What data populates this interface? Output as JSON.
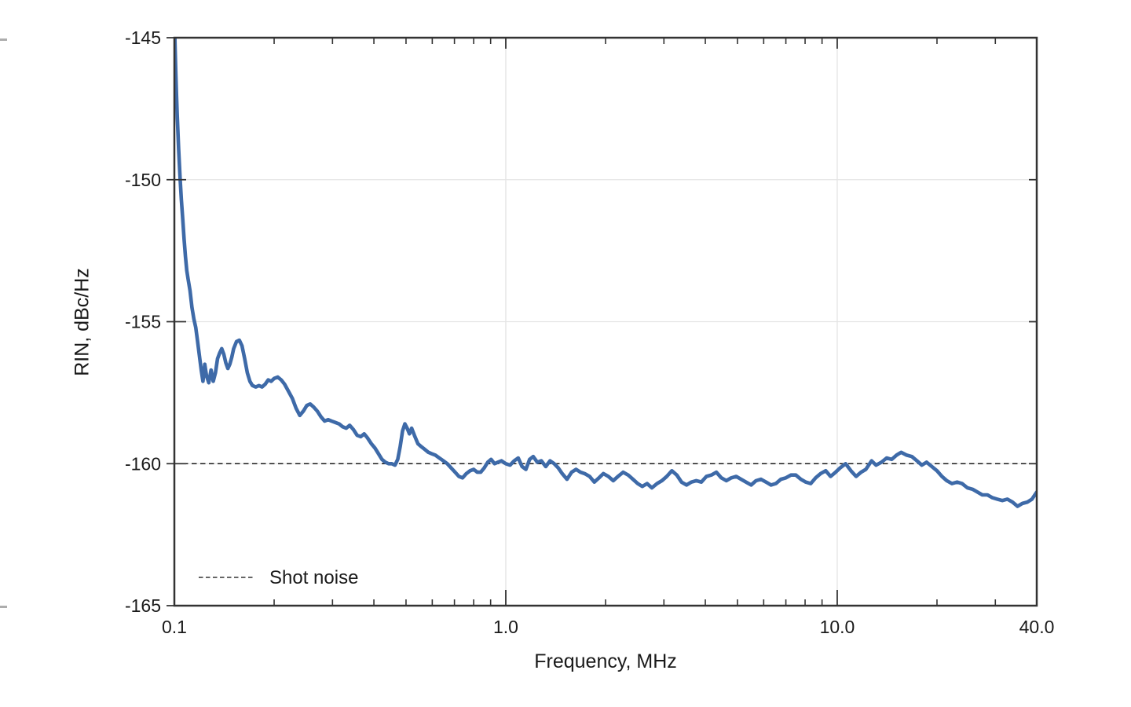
{
  "page": {
    "background": "#ffffff"
  },
  "chart_data": {
    "type": "line",
    "title": "",
    "xlabel": "Frequency, MHz",
    "ylabel": "RIN, dBc/Hz",
    "x_scale": "log",
    "xlim": [
      0.1,
      40
    ],
    "ylim": [
      -165,
      -145
    ],
    "grid": true,
    "grid_x_values": [
      1,
      10
    ],
    "grid_y_values": [
      -150,
      -155,
      -160
    ],
    "x_ticks": [
      {
        "value": 0.1,
        "label": "0.1"
      },
      {
        "value": 1.0,
        "label": "1.0"
      },
      {
        "value": 10.0,
        "label": "10.0"
      },
      {
        "value": 40.0,
        "label": "40.0"
      }
    ],
    "x_minor_ticks": [
      0.2,
      0.3,
      0.4,
      0.5,
      0.6,
      0.7,
      0.8,
      0.9,
      2,
      3,
      4,
      5,
      6,
      7,
      8,
      9,
      20,
      30
    ],
    "y_ticks": [
      {
        "value": -145,
        "label": "-145"
      },
      {
        "value": -150,
        "label": "-150"
      },
      {
        "value": -155,
        "label": "-155"
      },
      {
        "value": -160,
        "label": "-160"
      },
      {
        "value": -165,
        "label": "-165"
      }
    ],
    "colors": {
      "curve": "#3E6AA8",
      "shot_noise_line": "#1a1a1a",
      "frame": "#333333",
      "grid": "#e4e4e4"
    },
    "legend": {
      "position": "lower-left",
      "entries": [
        {
          "label": "Shot noise",
          "style": "dashed",
          "color": "#333333"
        }
      ]
    },
    "shot_noise": {
      "y": -160,
      "style": "dashed"
    },
    "series": [
      {
        "name": "RIN",
        "color": "#3E6AA8",
        "points": [
          [
            0.1,
            -144.3
          ],
          [
            0.1005,
            -145.3
          ],
          [
            0.101,
            -146.2
          ],
          [
            0.1015,
            -147.0
          ],
          [
            0.102,
            -147.7
          ],
          [
            0.103,
            -148.9
          ],
          [
            0.104,
            -149.9
          ],
          [
            0.105,
            -150.7
          ],
          [
            0.106,
            -151.4
          ],
          [
            0.107,
            -152.1
          ],
          [
            0.108,
            -152.7
          ],
          [
            0.109,
            -153.2
          ],
          [
            0.11,
            -153.5
          ],
          [
            0.1115,
            -153.9
          ],
          [
            0.113,
            -154.5
          ],
          [
            0.1145,
            -154.9
          ],
          [
            0.116,
            -155.2
          ],
          [
            0.1175,
            -155.7
          ],
          [
            0.119,
            -156.2
          ],
          [
            0.1205,
            -156.7
          ],
          [
            0.122,
            -157.1
          ],
          [
            0.1235,
            -156.5
          ],
          [
            0.125,
            -156.9
          ],
          [
            0.127,
            -157.15
          ],
          [
            0.129,
            -156.7
          ],
          [
            0.131,
            -157.1
          ],
          [
            0.133,
            -156.8
          ],
          [
            0.135,
            -156.3
          ],
          [
            0.137,
            -156.1
          ],
          [
            0.139,
            -155.95
          ],
          [
            0.141,
            -156.15
          ],
          [
            0.143,
            -156.45
          ],
          [
            0.145,
            -156.65
          ],
          [
            0.147,
            -156.5
          ],
          [
            0.149,
            -156.25
          ],
          [
            0.151,
            -155.95
          ],
          [
            0.154,
            -155.7
          ],
          [
            0.157,
            -155.65
          ],
          [
            0.16,
            -155.85
          ],
          [
            0.163,
            -156.3
          ],
          [
            0.166,
            -156.8
          ],
          [
            0.169,
            -157.1
          ],
          [
            0.172,
            -157.25
          ],
          [
            0.176,
            -157.3
          ],
          [
            0.18,
            -157.25
          ],
          [
            0.184,
            -157.3
          ],
          [
            0.188,
            -157.2
          ],
          [
            0.192,
            -157.05
          ],
          [
            0.196,
            -157.1
          ],
          [
            0.2,
            -157.0
          ],
          [
            0.205,
            -156.95
          ],
          [
            0.21,
            -157.05
          ],
          [
            0.215,
            -157.2
          ],
          [
            0.221,
            -157.45
          ],
          [
            0.227,
            -157.7
          ],
          [
            0.233,
            -158.05
          ],
          [
            0.239,
            -158.3
          ],
          [
            0.245,
            -158.15
          ],
          [
            0.251,
            -157.95
          ],
          [
            0.257,
            -157.9
          ],
          [
            0.263,
            -158.0
          ],
          [
            0.27,
            -158.15
          ],
          [
            0.277,
            -158.35
          ],
          [
            0.284,
            -158.5
          ],
          [
            0.291,
            -158.45
          ],
          [
            0.298,
            -158.5
          ],
          [
            0.306,
            -158.55
          ],
          [
            0.314,
            -158.6
          ],
          [
            0.322,
            -158.7
          ],
          [
            0.33,
            -158.75
          ],
          [
            0.338,
            -158.65
          ],
          [
            0.347,
            -158.8
          ],
          [
            0.356,
            -159.0
          ],
          [
            0.365,
            -159.05
          ],
          [
            0.374,
            -158.95
          ],
          [
            0.383,
            -159.1
          ],
          [
            0.393,
            -159.3
          ],
          [
            0.403,
            -159.45
          ],
          [
            0.413,
            -159.65
          ],
          [
            0.423,
            -159.85
          ],
          [
            0.433,
            -159.95
          ],
          [
            0.443,
            -160.0
          ],
          [
            0.453,
            -160.0
          ],
          [
            0.463,
            -160.05
          ],
          [
            0.472,
            -159.85
          ],
          [
            0.48,
            -159.4
          ],
          [
            0.488,
            -158.85
          ],
          [
            0.496,
            -158.6
          ],
          [
            0.504,
            -158.75
          ],
          [
            0.512,
            -158.95
          ],
          [
            0.52,
            -158.75
          ],
          [
            0.53,
            -159.0
          ],
          [
            0.543,
            -159.3
          ],
          [
            0.556,
            -159.4
          ],
          [
            0.57,
            -159.5
          ],
          [
            0.584,
            -159.6
          ],
          [
            0.598,
            -159.65
          ],
          [
            0.613,
            -159.7
          ],
          [
            0.63,
            -159.8
          ],
          [
            0.648,
            -159.9
          ],
          [
            0.666,
            -160.0
          ],
          [
            0.684,
            -160.15
          ],
          [
            0.703,
            -160.3
          ],
          [
            0.722,
            -160.45
          ],
          [
            0.741,
            -160.5
          ],
          [
            0.76,
            -160.35
          ],
          [
            0.78,
            -160.25
          ],
          [
            0.8,
            -160.2
          ],
          [
            0.82,
            -160.3
          ],
          [
            0.84,
            -160.3
          ],
          [
            0.861,
            -160.15
          ],
          [
            0.882,
            -159.95
          ],
          [
            0.903,
            -159.85
          ],
          [
            0.925,
            -160.0
          ],
          [
            0.947,
            -159.95
          ],
          [
            0.97,
            -159.9
          ],
          [
            1.0,
            -160.0
          ],
          [
            1.03,
            -160.05
          ],
          [
            1.06,
            -159.9
          ],
          [
            1.09,
            -159.8
          ],
          [
            1.12,
            -160.1
          ],
          [
            1.15,
            -160.2
          ],
          [
            1.18,
            -159.85
          ],
          [
            1.21,
            -159.75
          ],
          [
            1.245,
            -159.95
          ],
          [
            1.28,
            -159.9
          ],
          [
            1.32,
            -160.1
          ],
          [
            1.36,
            -159.9
          ],
          [
            1.4,
            -160.0
          ],
          [
            1.44,
            -160.15
          ],
          [
            1.48,
            -160.35
          ],
          [
            1.53,
            -160.55
          ],
          [
            1.58,
            -160.3
          ],
          [
            1.63,
            -160.2
          ],
          [
            1.68,
            -160.3
          ],
          [
            1.73,
            -160.35
          ],
          [
            1.79,
            -160.45
          ],
          [
            1.85,
            -160.65
          ],
          [
            1.91,
            -160.5
          ],
          [
            1.97,
            -160.35
          ],
          [
            2.04,
            -160.45
          ],
          [
            2.11,
            -160.6
          ],
          [
            2.18,
            -160.45
          ],
          [
            2.26,
            -160.3
          ],
          [
            2.34,
            -160.4
          ],
          [
            2.42,
            -160.55
          ],
          [
            2.5,
            -160.7
          ],
          [
            2.58,
            -160.8
          ],
          [
            2.67,
            -160.7
          ],
          [
            2.76,
            -160.85
          ],
          [
            2.86,
            -160.7
          ],
          [
            2.96,
            -160.6
          ],
          [
            3.06,
            -160.45
          ],
          [
            3.17,
            -160.25
          ],
          [
            3.28,
            -160.4
          ],
          [
            3.39,
            -160.65
          ],
          [
            3.51,
            -160.75
          ],
          [
            3.63,
            -160.65
          ],
          [
            3.76,
            -160.6
          ],
          [
            3.89,
            -160.65
          ],
          [
            4.03,
            -160.45
          ],
          [
            4.17,
            -160.4
          ],
          [
            4.32,
            -160.3
          ],
          [
            4.47,
            -160.5
          ],
          [
            4.63,
            -160.6
          ],
          [
            4.79,
            -160.5
          ],
          [
            4.96,
            -160.45
          ],
          [
            5.13,
            -160.55
          ],
          [
            5.31,
            -160.65
          ],
          [
            5.5,
            -160.75
          ],
          [
            5.69,
            -160.6
          ],
          [
            5.89,
            -160.55
          ],
          [
            6.1,
            -160.65
          ],
          [
            6.31,
            -160.75
          ],
          [
            6.53,
            -160.7
          ],
          [
            6.76,
            -160.55
          ],
          [
            7.0,
            -160.5
          ],
          [
            7.25,
            -160.4
          ],
          [
            7.5,
            -160.4
          ],
          [
            7.77,
            -160.55
          ],
          [
            8.04,
            -160.65
          ],
          [
            8.32,
            -160.7
          ],
          [
            8.61,
            -160.5
          ],
          [
            8.91,
            -160.35
          ],
          [
            9.23,
            -160.25
          ],
          [
            9.55,
            -160.45
          ],
          [
            9.89,
            -160.3
          ],
          [
            10.2,
            -160.15
          ],
          [
            10.6,
            -160.0
          ],
          [
            11.0,
            -160.25
          ],
          [
            11.4,
            -160.45
          ],
          [
            11.8,
            -160.3
          ],
          [
            12.2,
            -160.2
          ],
          [
            12.7,
            -159.9
          ],
          [
            13.1,
            -160.05
          ],
          [
            13.6,
            -159.95
          ],
          [
            14.1,
            -159.8
          ],
          [
            14.6,
            -159.85
          ],
          [
            15.1,
            -159.7
          ],
          [
            15.6,
            -159.6
          ],
          [
            16.2,
            -159.7
          ],
          [
            16.8,
            -159.75
          ],
          [
            17.4,
            -159.9
          ],
          [
            18.0,
            -160.05
          ],
          [
            18.6,
            -159.95
          ],
          [
            19.3,
            -160.1
          ],
          [
            20.0,
            -160.25
          ],
          [
            20.7,
            -160.45
          ],
          [
            21.4,
            -160.6
          ],
          [
            22.2,
            -160.7
          ],
          [
            23.0,
            -160.65
          ],
          [
            23.8,
            -160.7
          ],
          [
            24.7,
            -160.85
          ],
          [
            25.6,
            -160.9
          ],
          [
            26.5,
            -161.0
          ],
          [
            27.4,
            -161.1
          ],
          [
            28.4,
            -161.1
          ],
          [
            29.4,
            -161.2
          ],
          [
            30.4,
            -161.25
          ],
          [
            31.5,
            -161.3
          ],
          [
            32.6,
            -161.25
          ],
          [
            33.8,
            -161.35
          ],
          [
            35.0,
            -161.5
          ],
          [
            36.2,
            -161.4
          ],
          [
            37.5,
            -161.35
          ],
          [
            38.7,
            -161.25
          ],
          [
            40.0,
            -161.0
          ]
        ]
      }
    ]
  }
}
